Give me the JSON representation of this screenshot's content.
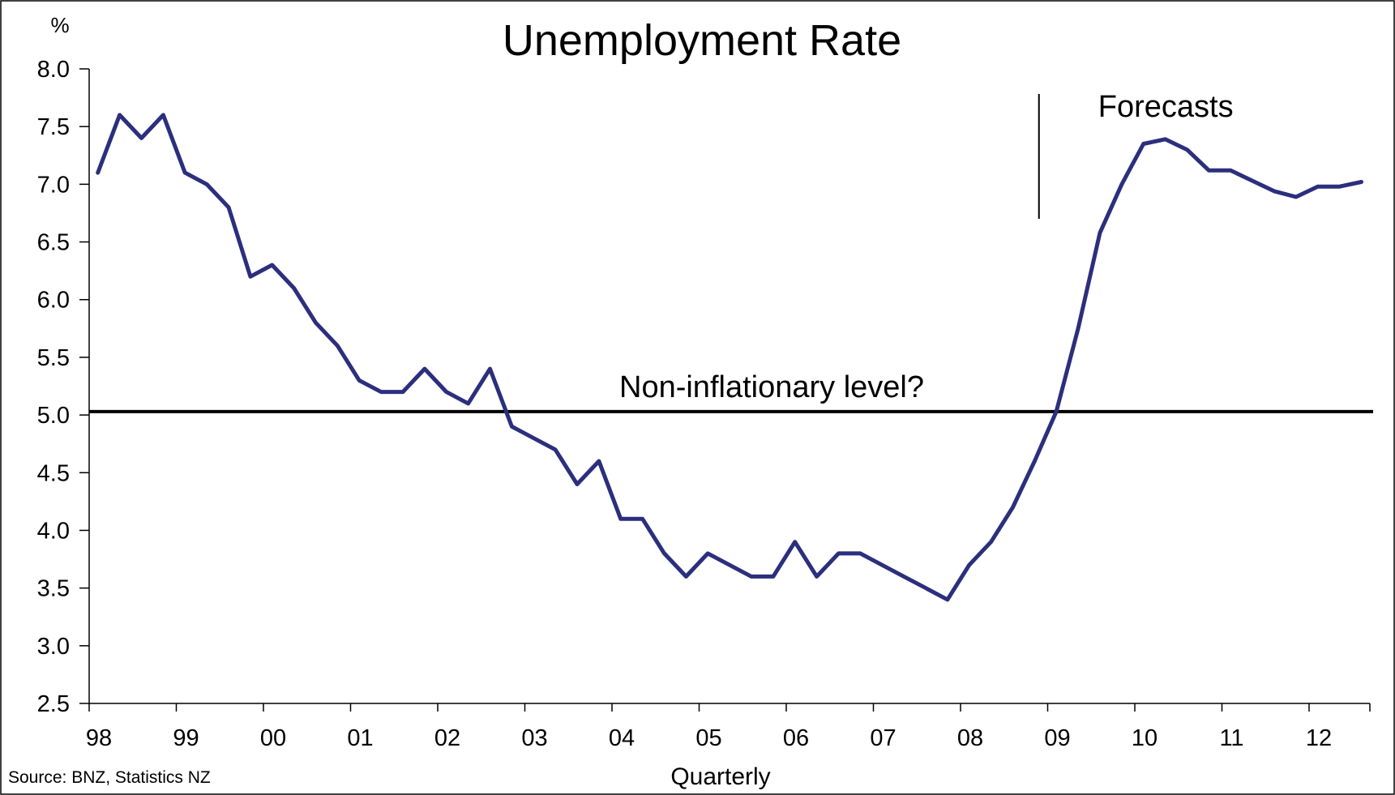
{
  "chart_data": {
    "type": "line",
    "title": "Unemployment Rate",
    "y_unit": "%",
    "xlabel": "Quarterly",
    "source": "Source: BNZ, Statistics NZ",
    "ylim": [
      2.5,
      8.0
    ],
    "y_ticks": [
      "8.0",
      "7.5",
      "7.0",
      "6.5",
      "6.0",
      "5.5",
      "5.0",
      "4.5",
      "4.0",
      "3.5",
      "3.0",
      "2.5"
    ],
    "x_tick_labels": [
      "98",
      "99",
      "00",
      "01",
      "02",
      "03",
      "04",
      "05",
      "06",
      "07",
      "08",
      "09",
      "10",
      "11",
      "12"
    ],
    "x_start_year": 1998,
    "reference_line": {
      "value": 5.03,
      "label": "Non-inflationary level?"
    },
    "forecast_marker": {
      "x": 2008.9,
      "label": "Forecasts"
    },
    "series": [
      {
        "color": "#2b2f7c",
        "points": [
          [
            1998.1,
            7.1
          ],
          [
            1998.35,
            7.6
          ],
          [
            1998.6,
            7.4
          ],
          [
            1998.85,
            7.6
          ],
          [
            1999.1,
            7.1
          ],
          [
            1999.35,
            7.0
          ],
          [
            1999.6,
            6.8
          ],
          [
            1999.85,
            6.2
          ],
          [
            2000.1,
            6.3
          ],
          [
            2000.35,
            6.1
          ],
          [
            2000.6,
            5.8
          ],
          [
            2000.85,
            5.6
          ],
          [
            2001.1,
            5.3
          ],
          [
            2001.35,
            5.2
          ],
          [
            2001.6,
            5.2
          ],
          [
            2001.85,
            5.4
          ],
          [
            2002.1,
            5.2
          ],
          [
            2002.35,
            5.1
          ],
          [
            2002.6,
            5.4
          ],
          [
            2002.85,
            4.9
          ],
          [
            2003.1,
            4.8
          ],
          [
            2003.35,
            4.7
          ],
          [
            2003.6,
            4.4
          ],
          [
            2003.85,
            4.6
          ],
          [
            2004.1,
            4.1
          ],
          [
            2004.35,
            4.1
          ],
          [
            2004.6,
            3.8
          ],
          [
            2004.85,
            3.6
          ],
          [
            2005.1,
            3.8
          ],
          [
            2005.35,
            3.7
          ],
          [
            2005.6,
            3.6
          ],
          [
            2005.85,
            3.6
          ],
          [
            2006.1,
            3.9
          ],
          [
            2006.35,
            3.6
          ],
          [
            2006.6,
            3.8
          ],
          [
            2006.85,
            3.8
          ],
          [
            2007.1,
            3.7
          ],
          [
            2007.35,
            3.6
          ],
          [
            2007.6,
            3.5
          ],
          [
            2007.85,
            3.4
          ],
          [
            2008.1,
            3.7
          ],
          [
            2008.35,
            3.9
          ],
          [
            2008.6,
            4.2
          ],
          [
            2008.85,
            4.6
          ],
          [
            2009.1,
            5.03
          ],
          [
            2009.35,
            5.75
          ],
          [
            2009.6,
            6.58
          ],
          [
            2009.85,
            7.0
          ],
          [
            2010.1,
            7.35
          ],
          [
            2010.35,
            7.39
          ],
          [
            2010.6,
            7.3
          ],
          [
            2010.85,
            7.12
          ],
          [
            2011.1,
            7.12
          ],
          [
            2011.35,
            7.03
          ],
          [
            2011.6,
            6.94
          ],
          [
            2011.85,
            6.89
          ],
          [
            2012.1,
            6.98
          ],
          [
            2012.35,
            6.98
          ],
          [
            2012.6,
            7.02
          ]
        ]
      }
    ]
  }
}
